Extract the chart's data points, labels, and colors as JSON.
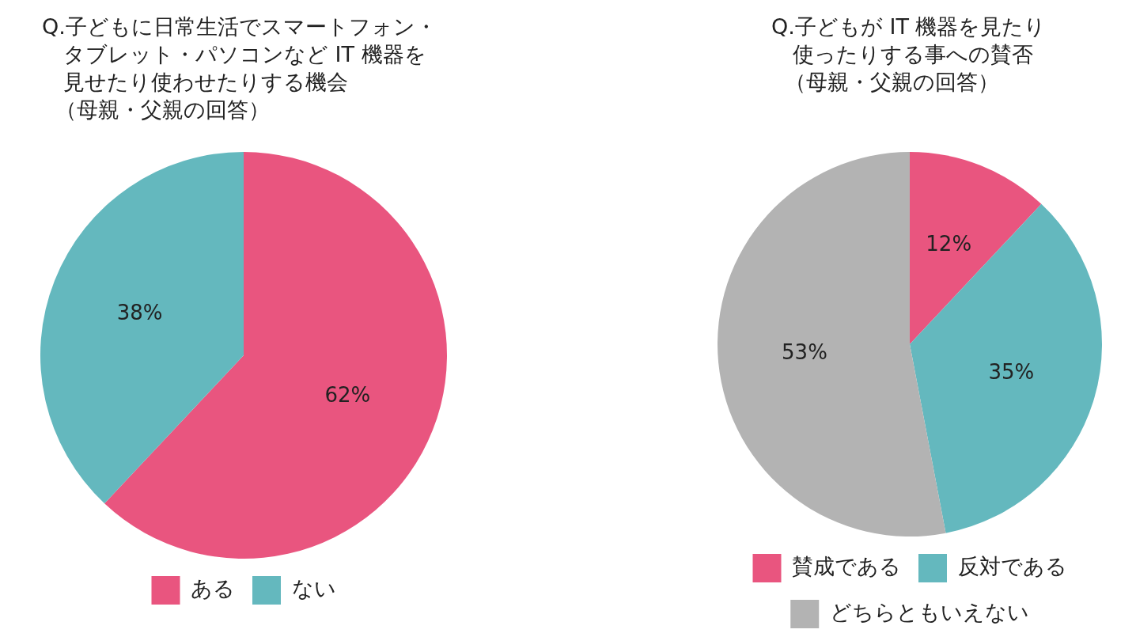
{
  "chart_data": [
    {
      "type": "pie",
      "title": "Q.子どもに日常生活でスマートフォン・タブレット・パソコンなど IT 機器を見せたり使わせたりする機会",
      "subtitle": "（母親・父親の回答）",
      "categories": [
        "ある",
        "ない"
      ],
      "values": [
        62,
        38
      ],
      "colors": [
        "#e9557f",
        "#64b8be"
      ],
      "value_labels": [
        "62%",
        "38%"
      ],
      "legend": "bottom"
    },
    {
      "type": "pie",
      "title": "Q.子どもが IT 機器を見たり使ったりする事への賛否",
      "subtitle": "（母親・父親の回答）",
      "categories": [
        "賛成である",
        "反対である",
        "どちらともいえない"
      ],
      "values": [
        12,
        35,
        53
      ],
      "colors": [
        "#e9557f",
        "#64b8be",
        "#b3b3b3"
      ],
      "value_labels": [
        "12%",
        "35%",
        "53%"
      ],
      "legend": "bottom"
    }
  ]
}
